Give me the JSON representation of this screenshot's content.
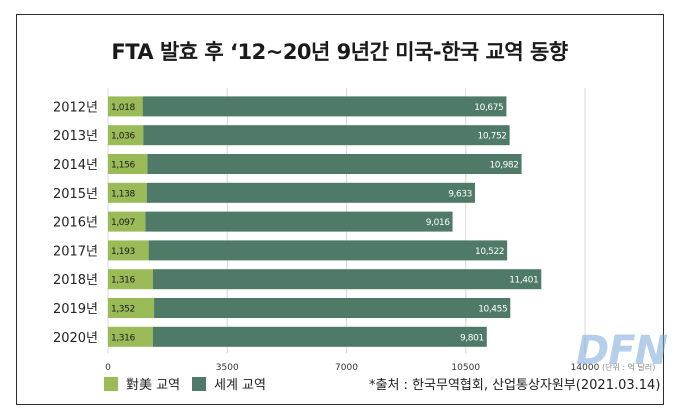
{
  "title": "FTA 발효 후 ‘12~20년 9년간 미국-한국 교역 동향",
  "colors": {
    "korea_us": "#9bbb59",
    "world": "#4e7a67",
    "grid": "#d9d9d9"
  },
  "legend": [
    {
      "key": "korea_us",
      "label": "對美 교역"
    },
    {
      "key": "world",
      "label": "세계 교역"
    }
  ],
  "source_note": "*출처 : 한국무역협회, 산업통상자원부(2021.03.14)",
  "watermark": "DFN",
  "chart_data": {
    "type": "bar",
    "orientation": "horizontal",
    "stacked": true,
    "categories": [
      "2012년",
      "2013년",
      "2014년",
      "2015년",
      "2016년",
      "2017년",
      "2018년",
      "2019년",
      "2020년"
    ],
    "series": [
      {
        "name": "對美 교역",
        "values": [
          1018,
          1036,
          1156,
          1138,
          1097,
          1193,
          1316,
          1352,
          1316
        ],
        "labels": [
          "1,018",
          "1,036",
          "1,156",
          "1,138",
          "1,097",
          "1,193",
          "1,316",
          "1,352",
          "1,316"
        ]
      },
      {
        "name": "세계 교역",
        "values": [
          10675,
          10752,
          10982,
          9633,
          9016,
          10522,
          11401,
          10455,
          9801
        ],
        "labels": [
          "10,675",
          "10,752",
          "10,982",
          "9,633",
          "9,016",
          "10,522",
          "11,401",
          "10,455",
          "9,801"
        ]
      }
    ],
    "xlim": [
      0,
      14000
    ],
    "xticks": [
      0,
      3500,
      7000,
      10500,
      14000
    ],
    "xtick_labels": [
      "0",
      "3500",
      "7000",
      "10500",
      "14000"
    ],
    "unit_label": "(단위 : 억 달러)",
    "grid": true,
    "legend_position": "bottom-left"
  }
}
